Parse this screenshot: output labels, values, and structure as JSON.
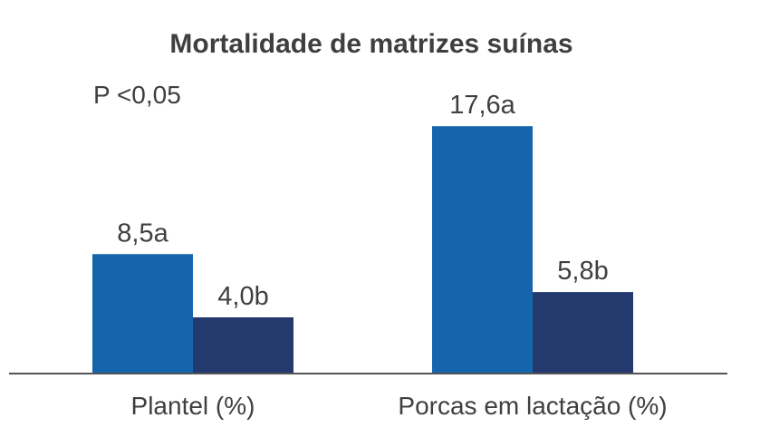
{
  "chart_data": {
    "type": "bar",
    "title": "Mortalidade de matrizes suínas",
    "annotation": "P <0,05",
    "categories": [
      "Plantel (%)",
      "Porcas em lactação (%)"
    ],
    "series": [
      {
        "values": [
          8.5,
          17.6
        ],
        "labels": [
          "8,5a",
          "17,6a"
        ],
        "color": "#1565ad"
      },
      {
        "values": [
          4.0,
          5.8
        ],
        "labels": [
          "4,0b",
          "5,8b"
        ],
        "color": "#243a6e"
      }
    ],
    "ylim": [
      0,
      20
    ],
    "grid": false,
    "xlabel": "",
    "ylabel": ""
  },
  "colors": {
    "text": "#3f3f3f",
    "axis": "#555555"
  }
}
